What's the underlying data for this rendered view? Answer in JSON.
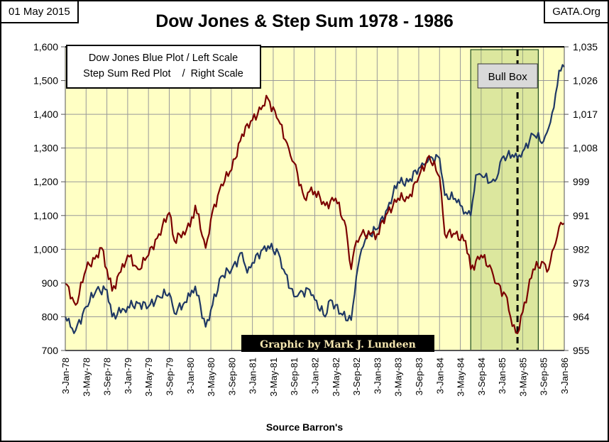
{
  "header": {
    "date": "01 May 2015",
    "site": "GATA.Org"
  },
  "chart_data": {
    "type": "line",
    "title": "Dow Jones & Step Sum 1978 - 1986",
    "xlabel": "Source Barron's",
    "legend": [
      "Dow Jones Blue Plot / Left Scale",
      "Step Sum Red Plot    /  Right Scale"
    ],
    "legend_placement": "top-left",
    "credit": "Graphic by Mark J. Lundeen",
    "annotation": {
      "label": "Bull Box",
      "start_month": 78,
      "end_month": 91,
      "marker_month": 87
    },
    "x_unit": "months since Jan-1978",
    "x_ticks": [
      "3-Jan-78",
      "3-May-78",
      "3-Sep-78",
      "3-Jan-79",
      "3-May-79",
      "3-Sep-79",
      "3-Jan-80",
      "3-May-80",
      "3-Sep-80",
      "3-Jan-81",
      "3-May-81",
      "3-Sep-81",
      "3-Jan-82",
      "3-May-82",
      "3-Sep-82",
      "3-Jan-83",
      "3-May-83",
      "3-Sep-83",
      "3-Jan-84",
      "3-May-84",
      "3-Sep-84",
      "3-Jan-85",
      "3-May-85",
      "3-Sep-85",
      "3-Jan-86"
    ],
    "xlim": [
      0,
      96
    ],
    "left_axis": {
      "ylim": [
        700,
        1600
      ],
      "ticks": [
        "700",
        "800",
        "900",
        "1,000",
        "1,100",
        "1,200",
        "1,300",
        "1,400",
        "1,500",
        "1,600"
      ]
    },
    "right_axis": {
      "ylim": [
        955,
        1035
      ],
      "ticks": [
        "955",
        "964",
        "973",
        "982",
        "991",
        "999",
        "1,008",
        "1,017",
        "1,026",
        "1,035"
      ]
    },
    "grid": true,
    "series": [
      {
        "name": "Dow Jones",
        "axis": "left",
        "color": "#1F3864",
        "x": [
          0,
          1,
          2,
          4,
          6,
          8,
          9,
          12,
          14,
          16,
          18,
          20,
          21,
          24,
          25,
          27,
          28,
          30,
          32,
          34,
          35,
          36,
          38,
          39,
          41,
          42,
          44,
          45,
          47,
          48,
          50,
          51,
          53,
          55,
          56,
          57,
          58,
          60,
          62,
          64,
          66,
          68,
          69,
          70,
          72,
          73,
          75,
          76,
          77,
          78,
          79,
          80,
          82,
          83,
          84,
          86,
          87,
          88,
          90,
          92,
          93,
          94,
          95,
          96
        ],
        "y": [
          800,
          770,
          760,
          830,
          880,
          880,
          800,
          830,
          840,
          830,
          860,
          870,
          810,
          860,
          890,
          770,
          820,
          920,
          940,
          990,
          930,
          960,
          1000,
          1010,
          990,
          940,
          860,
          870,
          880,
          850,
          800,
          850,
          810,
          790,
          920,
          1000,
          1040,
          1060,
          1120,
          1200,
          1200,
          1240,
          1250,
          1270,
          1270,
          1160,
          1150,
          1130,
          1110,
          1100,
          1220,
          1220,
          1200,
          1210,
          1270,
          1280,
          1270,
          1290,
          1340,
          1320,
          1360,
          1420,
          1530,
          1540
        ]
      },
      {
        "name": "Step Sum",
        "axis": "right",
        "color": "#7B0000",
        "x": [
          0,
          2,
          4,
          6,
          7,
          8,
          9,
          12,
          14,
          16,
          18,
          20,
          21,
          24,
          25,
          27,
          28,
          30,
          32,
          34,
          36,
          38,
          39,
          41,
          43,
          44,
          46,
          47,
          48,
          50,
          52,
          54,
          55,
          56,
          57,
          60,
          62,
          64,
          66,
          68,
          70,
          72,
          73,
          75,
          77,
          78,
          80,
          82,
          83,
          85,
          86,
          87,
          88,
          90,
          92,
          93,
          94,
          95,
          96
        ],
        "y": [
          972.6,
          967.0,
          976.4,
          980.1,
          982.0,
          976.4,
          970.7,
          980.1,
          976.4,
          980.1,
          985.7,
          991.3,
          983.9,
          987.6,
          993.2,
          982.0,
          989.5,
          998.8,
          1002.6,
          1012.0,
          1015.7,
          1019.5,
          1021.3,
          1015.7,
          1008.2,
          1004.5,
          995.1,
          996.9,
          996.9,
          993.2,
          995.1,
          987.6,
          976.4,
          983.9,
          985.7,
          985.7,
          991.3,
          995.1,
          995.1,
          1000.7,
          1006.3,
          1000.7,
          985.7,
          985.7,
          983.9,
          976.4,
          980.1,
          976.4,
          972.6,
          968.9,
          961.4,
          959.5,
          965.1,
          976.4,
          978.2,
          976.4,
          982.0,
          987.6,
          988.5
        ]
      }
    ]
  }
}
